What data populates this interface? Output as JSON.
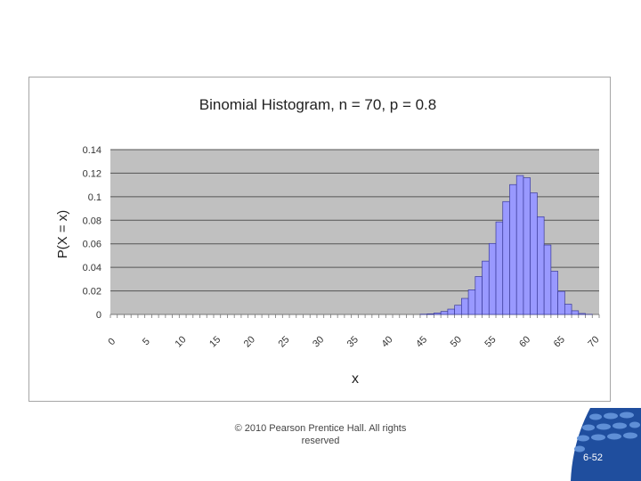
{
  "chart_data": {
    "type": "bar",
    "title": "Binomial Histogram, n = 70, p = 0.8",
    "xlabel": "x",
    "ylabel": "P(X = x)",
    "ylim": [
      0,
      0.14
    ],
    "yticks": [
      "0",
      "0.02",
      "0.04",
      "0.06",
      "0.08",
      "0.1",
      "0.12",
      "0.14"
    ],
    "xticks": [
      "0",
      "5",
      "10",
      "15",
      "20",
      "25",
      "30",
      "35",
      "40",
      "45",
      "50",
      "55",
      "60",
      "65",
      "70"
    ],
    "grid": true,
    "legend": "none",
    "bar_color": "#9999ff",
    "plot_bg": "#c0c0c0",
    "x": [
      45,
      46,
      47,
      48,
      49,
      50,
      51,
      52,
      53,
      54,
      55,
      56,
      57,
      58,
      59,
      60,
      61,
      62,
      63,
      64,
      65,
      66,
      67,
      68,
      69,
      70
    ],
    "values": [
      0.0002,
      0.0005,
      0.0012,
      0.0025,
      0.0045,
      0.0078,
      0.0136,
      0.0209,
      0.0322,
      0.0453,
      0.0603,
      0.0786,
      0.0959,
      0.1103,
      0.118,
      0.1161,
      0.1033,
      0.083,
      0.059,
      0.0367,
      0.0196,
      0.0087,
      0.0031,
      0.0008,
      0.0001,
      0.0
    ]
  },
  "footer": {
    "copyright_line1": "© 2010 Pearson Prentice Hall. All rights",
    "copyright_line2": "reserved",
    "page_number": "6-52"
  },
  "badge_color": "#1f4e9e"
}
